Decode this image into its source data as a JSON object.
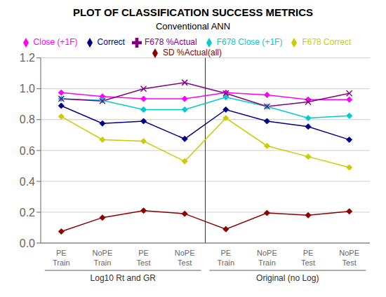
{
  "chart_data": {
    "type": "line",
    "title": "PLOT OF CLASSIFICATION SUCCESS METRICS",
    "subtitle": "Conventional ANN",
    "categories": [
      [
        "PE",
        "Train"
      ],
      [
        "NoPE",
        "Train"
      ],
      [
        "PE",
        "Test"
      ],
      [
        "NoPE",
        "Test"
      ],
      [
        "PE",
        "Train"
      ],
      [
        "NoPE",
        "Train"
      ],
      [
        "PE",
        "Test"
      ],
      [
        "NoPE",
        "Test"
      ]
    ],
    "group_labels": [
      "Log10 Rt and GR",
      "Original (no Log)"
    ],
    "series": [
      {
        "name": "Correct",
        "color": "#00008B",
        "marker": "diamond",
        "values": [
          0.89,
          0.775,
          0.79,
          0.675,
          0.865,
          0.79,
          0.755,
          0.67
        ]
      },
      {
        "name": "Close (+1F)",
        "color": "#FF00FF",
        "marker": "diamond",
        "values": [
          0.975,
          0.95,
          0.935,
          0.935,
          0.975,
          0.96,
          0.93,
          0.93
        ]
      },
      {
        "name": "F678 Correct",
        "color": "#CCCC00",
        "marker": "diamond",
        "values": [
          0.82,
          0.67,
          0.66,
          0.53,
          0.81,
          0.63,
          0.56,
          0.49
        ]
      },
      {
        "name": "F678 Close (+1F)",
        "color": "#00CCCC",
        "marker": "diamond",
        "values": [
          0.935,
          0.925,
          0.865,
          0.865,
          0.945,
          0.885,
          0.81,
          0.825
        ]
      },
      {
        "name": "F678 %Actual",
        "color": "#800080",
        "marker": "x",
        "values": [
          0.935,
          0.92,
          1.0,
          1.04,
          0.97,
          0.885,
          0.915,
          0.97
        ]
      },
      {
        "name": "SD %Actual(all)",
        "color": "#8B0000",
        "marker": "diamond",
        "values": [
          0.075,
          0.165,
          0.21,
          0.19,
          0.09,
          0.195,
          0.18,
          0.205
        ]
      }
    ],
    "ylim": [
      0,
      1.2
    ],
    "yticks": [
      {
        "value": 0,
        "label": "0.0"
      },
      0.2,
      0.4,
      0.6,
      0.8,
      {
        "value": 1,
        "label": "1.0"
      },
      1.2
    ],
    "grid": true,
    "legend": "top"
  }
}
